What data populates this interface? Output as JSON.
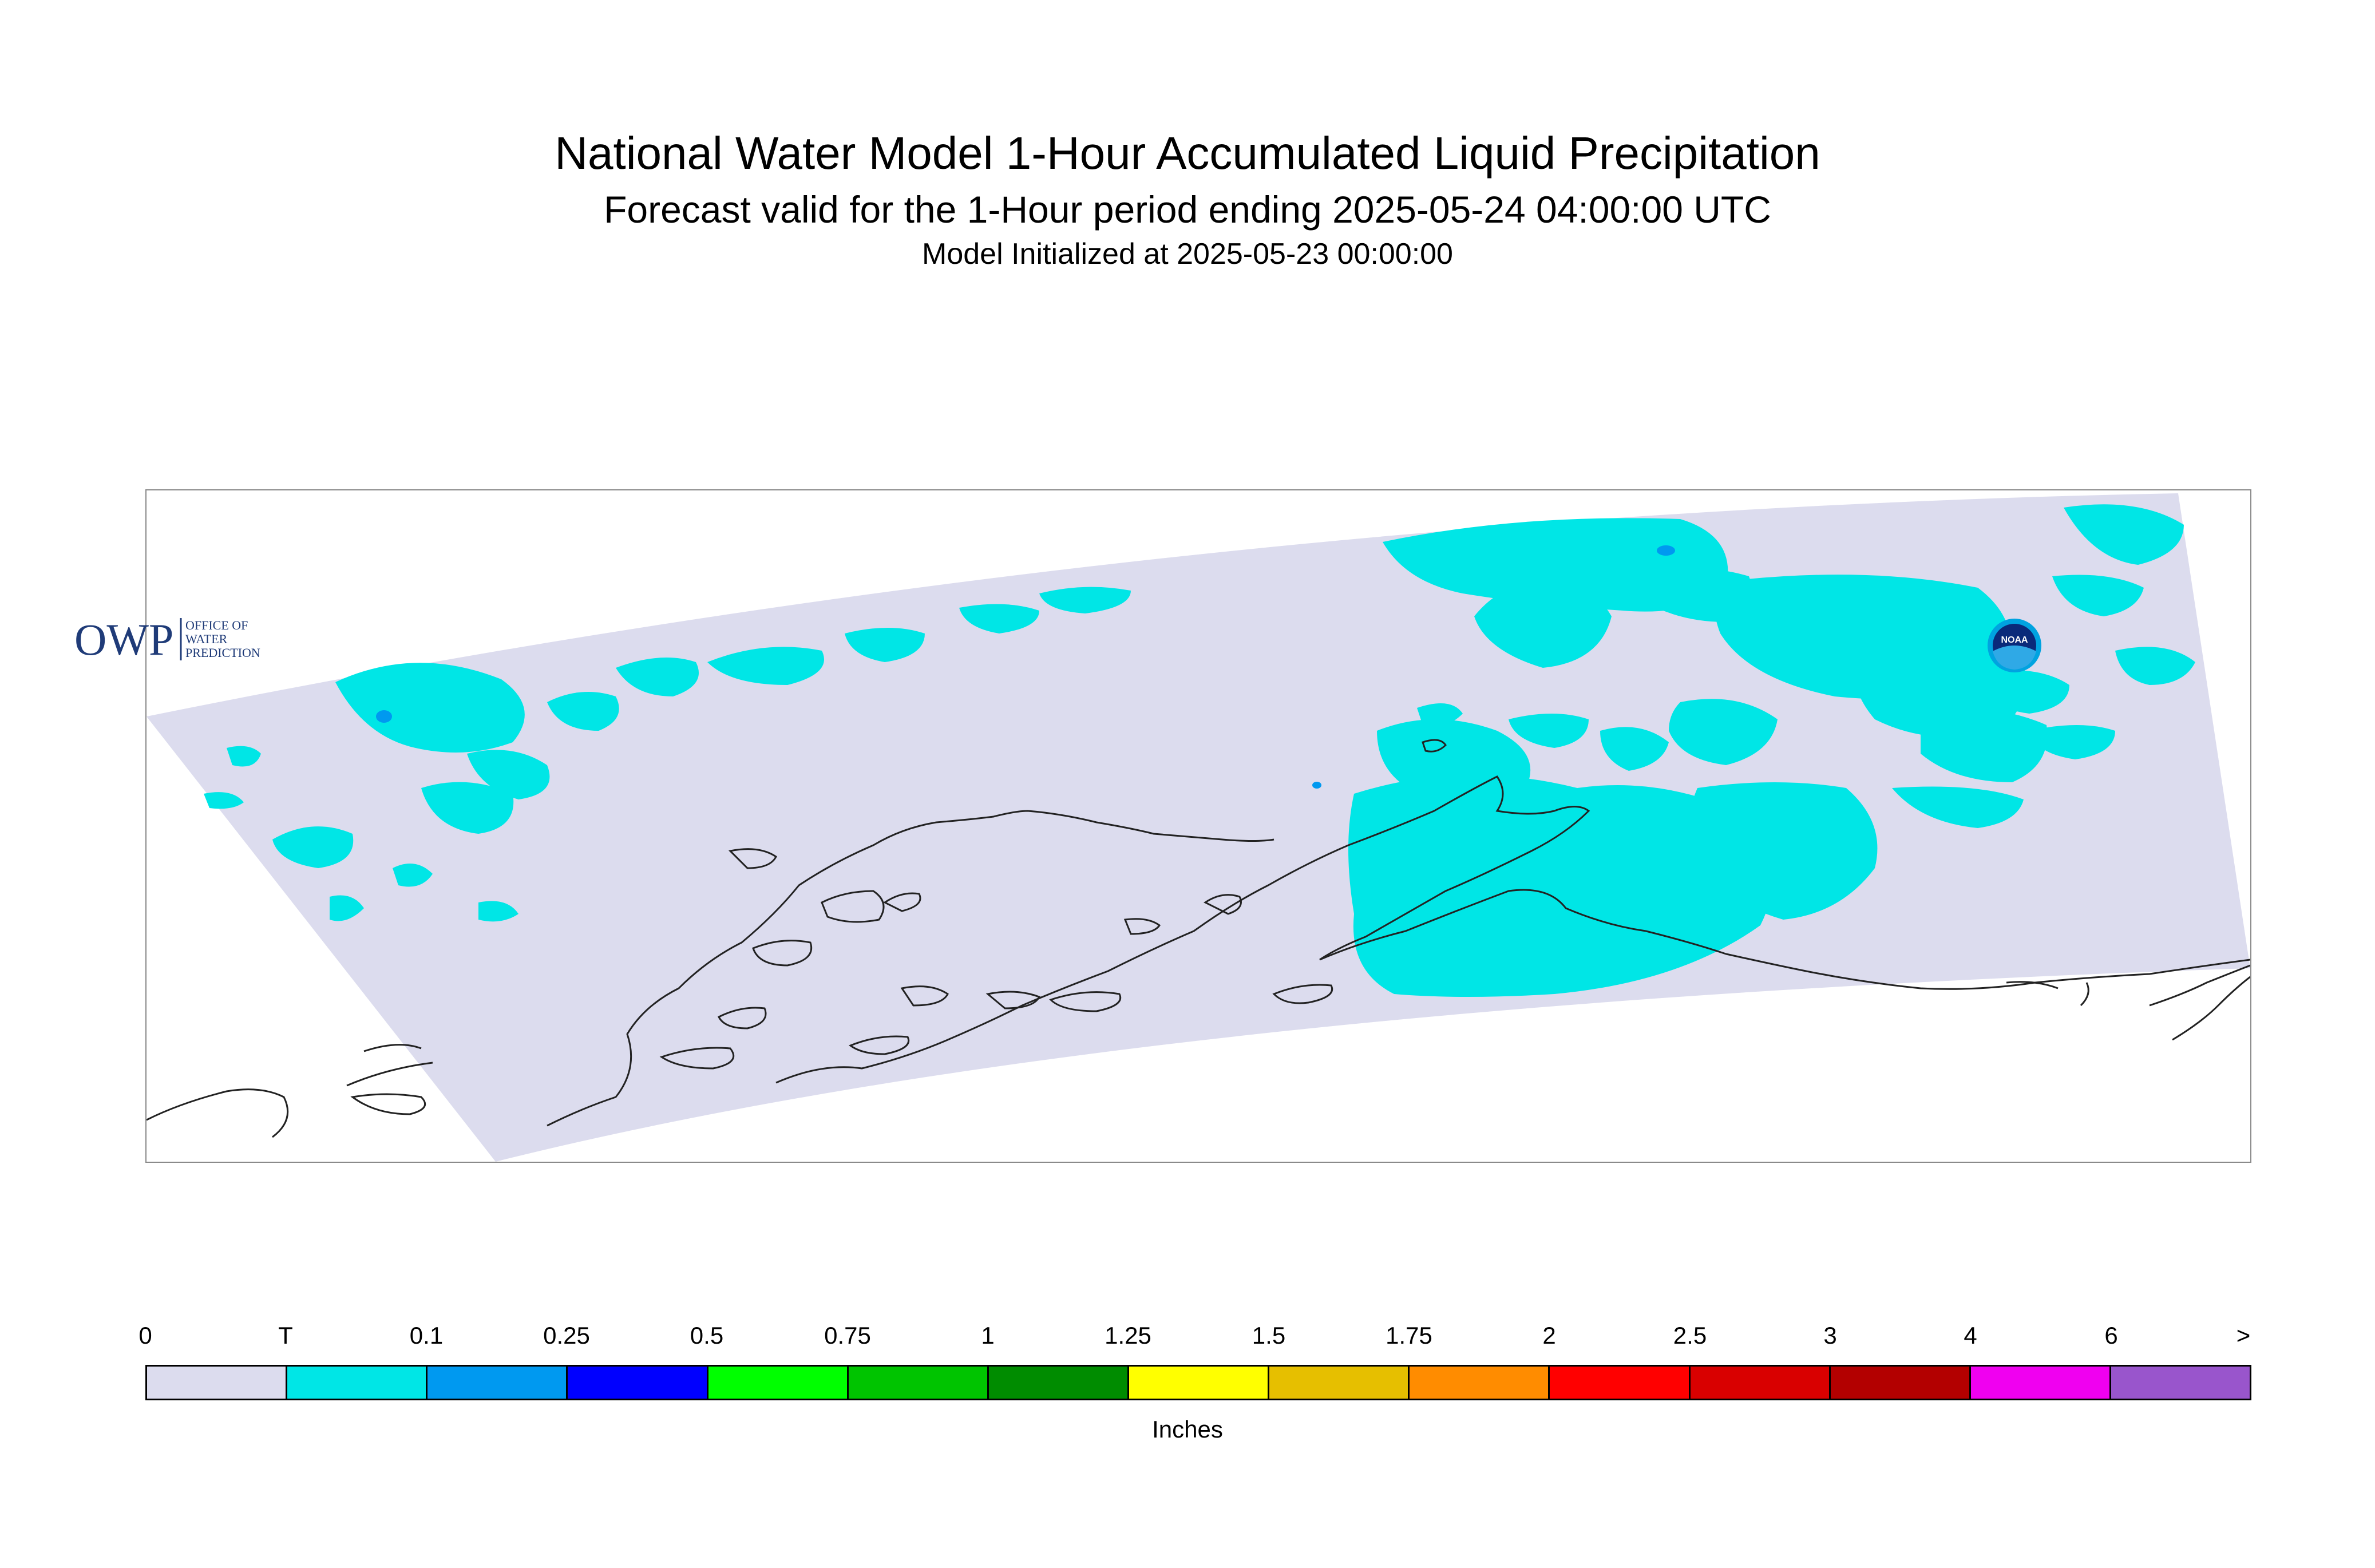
{
  "titles": {
    "main": "National Water Model 1-Hour Accumulated Liquid Precipitation",
    "forecast": "Forecast valid for the 1-Hour period ending 2025-05-24 04:00:00 UTC",
    "init": "Model Initialized at 2025-05-23 00:00:00"
  },
  "logos": {
    "owp_mark": "OWP",
    "owp_text": [
      "OFFICE OF",
      "WATER",
      "PREDICTION"
    ],
    "noaa_text": "NOAA"
  },
  "colors": {
    "domain": "#dcdcee",
    "trace": "#00e6e6",
    "light_blue": "#0099f0",
    "coastline": "#222222"
  },
  "legend": {
    "labels": [
      "0",
      "T",
      "0.1",
      "0.25",
      "0.5",
      "0.75",
      "1",
      "1.25",
      "1.5",
      "1.75",
      "2",
      "2.5",
      "3",
      "4",
      "6",
      ">"
    ],
    "colors": [
      "#dcdcee",
      "#00e6e6",
      "#0099f0",
      "#0000ff",
      "#00ff00",
      "#00c400",
      "#008c00",
      "#ffff00",
      "#e6bf00",
      "#ff8c00",
      "#ff0000",
      "#d90000",
      "#b30000",
      "#f000f0",
      "#9955cc"
    ],
    "units": "Inches"
  }
}
